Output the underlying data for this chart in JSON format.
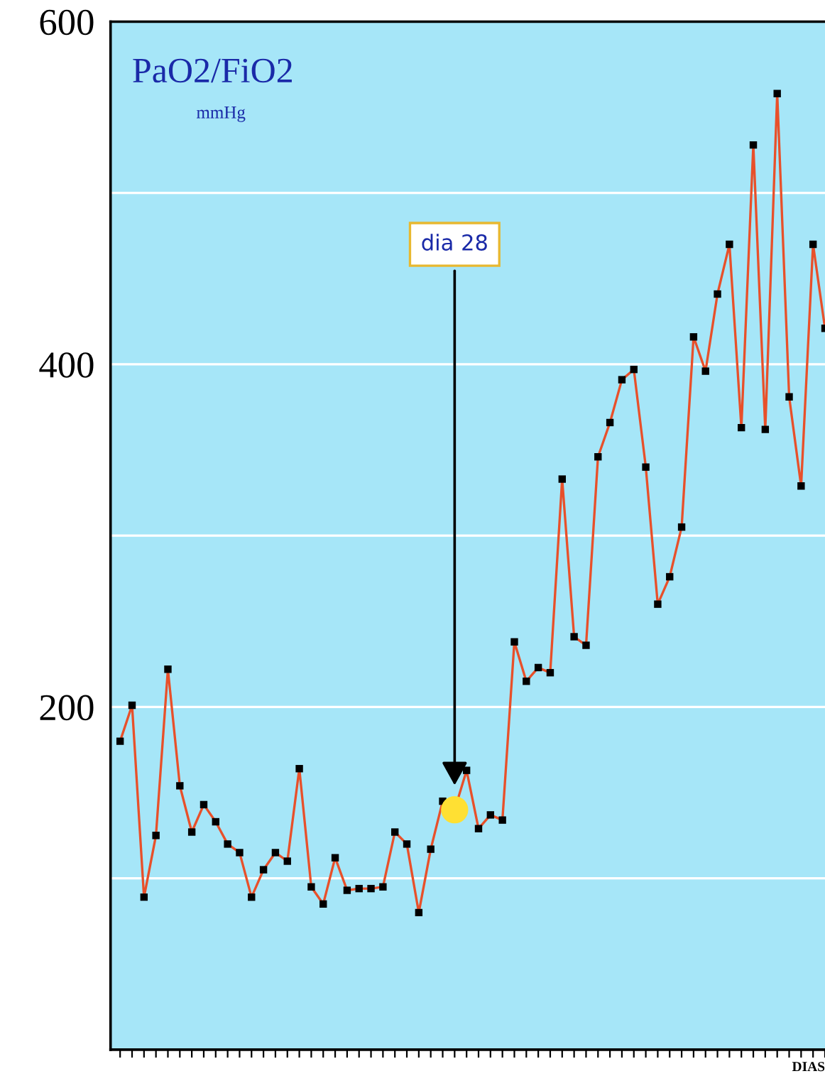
{
  "chart_data": {
    "type": "line",
    "title": "PaO2/FiO2",
    "subtitle": "mmHg",
    "xlabel": "DIAS",
    "categories": [
      null,
      null,
      null,
      null,
      null,
      null,
      null,
      null,
      null,
      null,
      null,
      null,
      null,
      null,
      null,
      null,
      null,
      null,
      null,
      null,
      null,
      null,
      null,
      null,
      null,
      null,
      null,
      null,
      null,
      null,
      null,
      null,
      null,
      null,
      null,
      null,
      null,
      null,
      null,
      null,
      null,
      null,
      null,
      null,
      null,
      null,
      null,
      null,
      null,
      null,
      null,
      null,
      null,
      null,
      null,
      null,
      null,
      null,
      null,
      null
    ],
    "series": [
      {
        "color": "#e8502a",
        "values": [
          180,
          201,
          89,
          125,
          222,
          154,
          127,
          143,
          133,
          120,
          115,
          89,
          105,
          115,
          110,
          164,
          95,
          85,
          112,
          93,
          94,
          94,
          95,
          127,
          120,
          80,
          117,
          145,
          140,
          163,
          129,
          137,
          134,
          238,
          215,
          223,
          220,
          333,
          241,
          236,
          346,
          366,
          391,
          397,
          340,
          260,
          276,
          305,
          416,
          396,
          441,
          470,
          363,
          528,
          362,
          558,
          381,
          329,
          470,
          421
        ],
        "colors": [
          "#000000",
          "#000000",
          "#000000",
          "#000000",
          "#000000",
          "#000000",
          "#000000",
          "#000000",
          "#000000",
          "#000000",
          "#000000",
          "#000000",
          "#000000",
          "#000000",
          "#000000",
          "#000000",
          "#000000",
          "#000000",
          "#000000",
          "#000000",
          "#000000",
          "#000000",
          "#000000",
          "#000000",
          "#000000",
          "#000000",
          "#000000",
          "#000000",
          "#ffe033",
          "#000000",
          "#000000",
          "#000000",
          "#000000",
          "#000000",
          "#000000",
          "#000000",
          "#000000",
          "#000000",
          "#000000",
          "#000000",
          "#000000",
          "#000000",
          "#000000",
          "#000000",
          "#000000",
          "#000000",
          "#000000",
          "#000000",
          "#000000",
          "#000000",
          "#000000",
          "#000000",
          "#000000",
          "#000000",
          "#000000",
          "#000000",
          "#000000",
          "#000000",
          "#000000",
          "#000000"
        ]
      }
    ],
    "annotations": [
      "dia 28"
    ],
    "marker": "square",
    "ylim": [
      0,
      600
    ],
    "yticks": [
      {
        "value": 0,
        "label": null
      },
      {
        "value": 100,
        "label": null
      },
      200,
      {
        "value": 300,
        "label": null
      },
      400,
      {
        "value": 500,
        "label": null
      },
      600
    ],
    "grid": "y",
    "tick_labels": "y"
  }
}
